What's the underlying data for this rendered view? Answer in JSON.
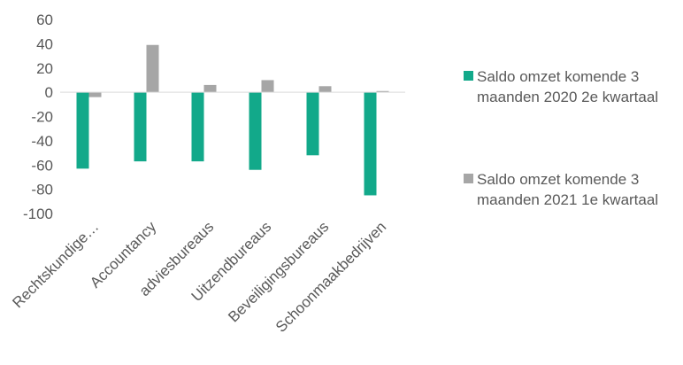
{
  "chart_data": {
    "type": "bar",
    "categories": [
      "Rechtskundige…",
      "Accountancy",
      "adviesbureaus",
      "Uitzendbureaus",
      "Beveiligingsbureaus",
      "Schoonmaakbedrijven"
    ],
    "series": [
      {
        "name": "Saldo omzet komende 3 maanden 2020 2e kwartaal",
        "color": "#12a98a",
        "values": [
          -63,
          -57,
          -57,
          -64,
          -52,
          -85
        ]
      },
      {
        "name": "Saldo omzet komende 3 maanden 2021 1e kwartaal",
        "color": "#a6a6a6",
        "values": [
          -4,
          39,
          6,
          10,
          5,
          1
        ]
      }
    ],
    "yticks": [
      "60",
      "40",
      "20",
      "0",
      "-20",
      "-40",
      "-60",
      "-80",
      "-100"
    ],
    "ylim": [
      -100,
      60
    ],
    "grid": false,
    "legend": "right"
  }
}
